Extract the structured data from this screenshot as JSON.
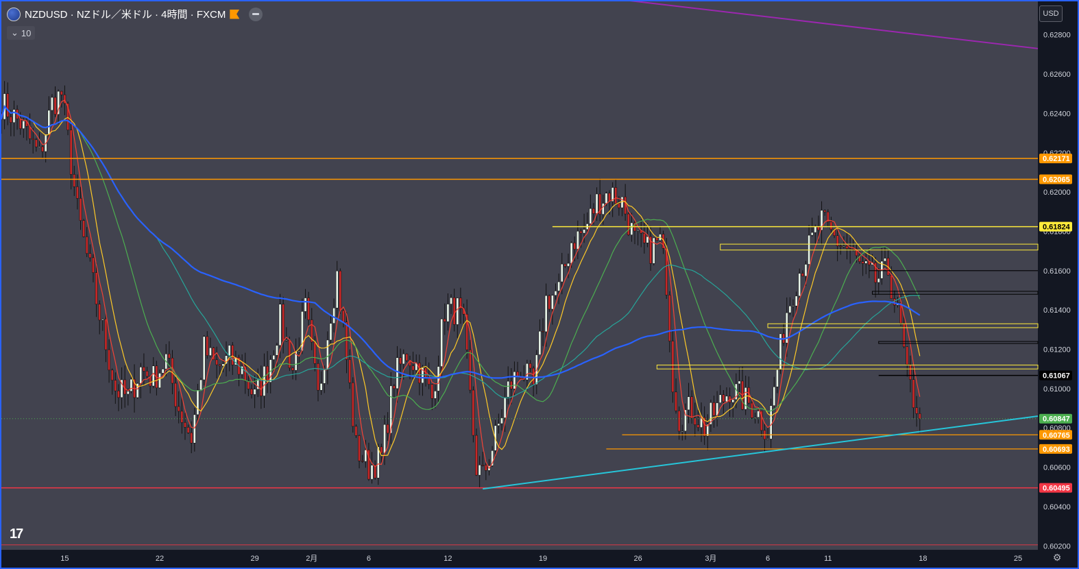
{
  "header": {
    "symbol": "NZDUSD",
    "title": "NZDUSD · NZドル／米ドル · 4時間 · FXCM",
    "indicator_count": "10",
    "currency": "USD"
  },
  "colors": {
    "background": "#42434f",
    "up_candle": "#e8f5e9",
    "down_candle": "#c62828",
    "orange": "#ff9800",
    "yellow": "#ffeb3b",
    "red_level": "#f23645",
    "cyan_trend": "#26c6da",
    "purple_trend": "#9c27b0",
    "ma_blue": "#2962ff"
  },
  "chart_data": {
    "type": "candlestick",
    "y_range": [
      0.6018,
      0.6297
    ],
    "y_ticks": [
      "0.62800",
      "0.62600",
      "0.62400",
      "0.62200",
      "0.62000",
      "0.61800",
      "0.61600",
      "0.61400",
      "0.61200",
      "0.61000",
      "0.60800",
      "0.60600",
      "0.60400",
      "0.60200"
    ],
    "x_ticks": [
      {
        "label": "15",
        "bar": 20
      },
      {
        "label": "22",
        "bar": 50
      },
      {
        "label": "29",
        "bar": 80
      },
      {
        "label": "2月",
        "bar": 98
      },
      {
        "label": "6",
        "bar": 116
      },
      {
        "label": "12",
        "bar": 141
      },
      {
        "label": "19",
        "bar": 171
      },
      {
        "label": "26",
        "bar": 201
      },
      {
        "label": "3月",
        "bar": 224
      },
      {
        "label": "6",
        "bar": 242
      },
      {
        "label": "11",
        "bar": 261
      },
      {
        "label": "18",
        "bar": 291
      },
      {
        "label": "25",
        "bar": 321
      }
    ],
    "price_labels": [
      {
        "value": "0.62171",
        "price": 0.62171,
        "color": "#ff9800"
      },
      {
        "value": "0.62065",
        "price": 0.62065,
        "color": "#ff9800"
      },
      {
        "value": "0.61824",
        "price": 0.61824,
        "color": "#ffeb3b"
      },
      {
        "value": "0.61067",
        "price": 0.61067,
        "color": "#000000"
      },
      {
        "value": "0.60847",
        "price": 0.60847,
        "color": "#4caf50"
      },
      {
        "value": "0.60765",
        "price": 0.60765,
        "color": "#ff9800"
      },
      {
        "value": "0.60693",
        "price": 0.60693,
        "color": "#ff9800"
      },
      {
        "value": "0.60495",
        "price": 0.60495,
        "color": "#f23645"
      }
    ],
    "last_price": 0.60847,
    "anchors": [
      [
        0,
        0.6245
      ],
      [
        6,
        0.6235
      ],
      [
        12,
        0.6218
      ],
      [
        16,
        0.6245
      ],
      [
        19,
        0.625
      ],
      [
        22,
        0.6215
      ],
      [
        24,
        0.619
      ],
      [
        28,
        0.616
      ],
      [
        32,
        0.613
      ],
      [
        36,
        0.61
      ],
      [
        40,
        0.6095
      ],
      [
        44,
        0.611
      ],
      [
        48,
        0.6105
      ],
      [
        52,
        0.6115
      ],
      [
        56,
        0.609
      ],
      [
        60,
        0.6075
      ],
      [
        64,
        0.612
      ],
      [
        68,
        0.611
      ],
      [
        72,
        0.6115
      ],
      [
        76,
        0.611
      ],
      [
        80,
        0.6095
      ],
      [
        84,
        0.611
      ],
      [
        88,
        0.6135
      ],
      [
        92,
        0.611
      ],
      [
        96,
        0.614
      ],
      [
        100,
        0.6095
      ],
      [
        104,
        0.614
      ],
      [
        106,
        0.6158
      ],
      [
        108,
        0.613
      ],
      [
        112,
        0.607
      ],
      [
        116,
        0.606
      ],
      [
        120,
        0.6065
      ],
      [
        124,
        0.6105
      ],
      [
        128,
        0.6118
      ],
      [
        132,
        0.611
      ],
      [
        136,
        0.6095
      ],
      [
        140,
        0.614
      ],
      [
        144,
        0.614
      ],
      [
        146,
        0.613
      ],
      [
        150,
        0.606
      ],
      [
        152,
        0.6055
      ],
      [
        156,
        0.6075
      ],
      [
        160,
        0.61
      ],
      [
        164,
        0.611
      ],
      [
        168,
        0.61
      ],
      [
        172,
        0.6145
      ],
      [
        176,
        0.615
      ],
      [
        180,
        0.6175
      ],
      [
        184,
        0.618
      ],
      [
        188,
        0.6195
      ],
      [
        192,
        0.62
      ],
      [
        196,
        0.6195
      ],
      [
        200,
        0.6175
      ],
      [
        204,
        0.617
      ],
      [
        208,
        0.6175
      ],
      [
        210,
        0.6155
      ],
      [
        212,
        0.6105
      ],
      [
        214,
        0.6085
      ],
      [
        218,
        0.609
      ],
      [
        222,
        0.608
      ],
      [
        226,
        0.609
      ],
      [
        230,
        0.61
      ],
      [
        234,
        0.6095
      ],
      [
        238,
        0.609
      ],
      [
        242,
        0.6078
      ],
      [
        244,
        0.61
      ],
      [
        248,
        0.614
      ],
      [
        252,
        0.616
      ],
      [
        256,
        0.6175
      ],
      [
        259,
        0.6185
      ],
      [
        261,
        0.618
      ],
      [
        264,
        0.6175
      ],
      [
        268,
        0.617
      ],
      [
        272,
        0.616
      ],
      [
        276,
        0.6155
      ],
      [
        280,
        0.616
      ],
      [
        284,
        0.613
      ],
      [
        286,
        0.6105
      ],
      [
        288,
        0.6095
      ],
      [
        290,
        0.6088
      ]
    ],
    "horizontal_lines": [
      {
        "price": 0.62171,
        "from_bar": -5,
        "color": "#ff9800",
        "width": 1.5
      },
      {
        "price": 0.62065,
        "from_bar": -5,
        "color": "#ff9800",
        "width": 1.5
      },
      {
        "price": 0.61824,
        "from_bar": 174,
        "color": "#ffeb3b",
        "width": 1.5
      },
      {
        "price": 0.616,
        "from_bar": 274,
        "color": "#000000",
        "width": 1.2
      },
      {
        "price": 0.61067,
        "from_bar": 277,
        "color": "#000000",
        "width": 1.5
      },
      {
        "price": 0.60765,
        "from_bar": 196,
        "color": "#ff9800",
        "width": 1.2
      },
      {
        "price": 0.60693,
        "from_bar": 191,
        "color": "#ff9800",
        "width": 1.2
      },
      {
        "price": 0.60495,
        "from_bar": -5,
        "color": "#f23645",
        "width": 1.5
      },
      {
        "price": 0.60205,
        "from_bar": -5,
        "color": "#f23645",
        "width": 0.8
      }
    ],
    "zones": [
      {
        "top": 0.61735,
        "bottom": 0.61705,
        "from_bar": 227,
        "color": "#ffeb3b"
      },
      {
        "top": 0.61495,
        "bottom": 0.6148,
        "from_bar": 275,
        "color": "#000000"
      },
      {
        "top": 0.6133,
        "bottom": 0.6131,
        "from_bar": 242,
        "color": "#ffeb3b"
      },
      {
        "top": 0.6124,
        "bottom": 0.6123,
        "from_bar": 277,
        "color": "#000000"
      },
      {
        "top": 0.6112,
        "bottom": 0.611,
        "from_bar": 207,
        "color": "#ffeb3b"
      }
    ],
    "trendlines": [
      {
        "from": [
          152,
          0.6049
        ],
        "to": [
          329,
          0.6086
        ],
        "color": "#26c6da",
        "width": 2
      },
      {
        "from": [
          195,
          0.6298
        ],
        "to": [
          329,
          0.6273
        ],
        "color": "#9c27b0",
        "width": 2
      }
    ],
    "moving_averages": [
      {
        "period": 5,
        "color": "#f44336"
      },
      {
        "period": 10,
        "color": "#ffca28"
      },
      {
        "period": 25,
        "color": "#4caf50"
      },
      {
        "period": 50,
        "color": "#26a69a"
      },
      {
        "period": 100,
        "color": "#2962ff"
      }
    ]
  }
}
